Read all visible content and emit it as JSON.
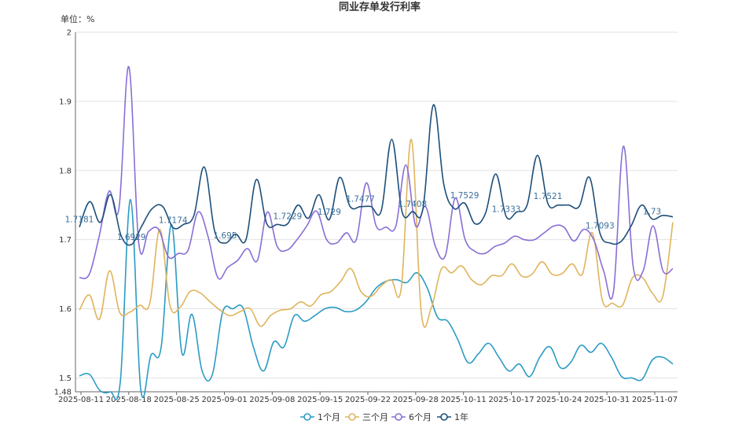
{
  "chart_data": {
    "type": "line",
    "title": "同业存单发行利率",
    "unit_label": "单位：%",
    "ylim": [
      1.48,
      2.0
    ],
    "yticks": [
      1.48,
      1.5,
      1.6,
      1.7,
      1.8,
      1.9,
      2
    ],
    "xticks": [
      "2025-08-11",
      "2025-08-18",
      "2025-08-25",
      "2025-09-01",
      "2025-09-08",
      "2025-09-15",
      "2025-09-22",
      "2025-09-28",
      "2025-10-11",
      "2025-10-17",
      "2025-10-24",
      "2025-10-31",
      "2025-11-07"
    ],
    "grid": true,
    "smooth": true,
    "legend_position": "bottom",
    "series": [
      {
        "name": "1个月",
        "color": "#2b9bc4",
        "values": [
          1.503,
          1.505,
          1.482,
          1.48,
          1.495,
          1.758,
          1.483,
          1.533,
          1.545,
          1.722,
          1.537,
          1.592,
          1.51,
          1.505,
          1.595,
          1.6,
          1.601,
          1.545,
          1.51,
          1.552,
          1.545,
          1.59,
          1.582,
          1.59,
          1.6,
          1.602,
          1.596,
          1.598,
          1.61,
          1.63,
          1.64,
          1.642,
          1.638,
          1.652,
          1.63,
          1.588,
          1.582,
          1.555,
          1.522,
          1.535,
          1.55,
          1.53,
          1.51,
          1.52,
          1.502,
          1.53,
          1.545,
          1.515,
          1.522,
          1.547,
          1.537,
          1.55,
          1.53,
          1.502,
          1.5,
          1.498,
          1.526,
          1.53,
          1.52
        ]
      },
      {
        "name": "三个月",
        "color": "#e0b45c",
        "values": [
          1.598,
          1.62,
          1.585,
          1.655,
          1.595,
          1.595,
          1.605,
          1.608,
          1.715,
          1.605,
          1.602,
          1.625,
          1.623,
          1.61,
          1.598,
          1.59,
          1.596,
          1.6,
          1.575,
          1.59,
          1.598,
          1.6,
          1.61,
          1.604,
          1.62,
          1.625,
          1.64,
          1.658,
          1.625,
          1.618,
          1.633,
          1.642,
          1.63,
          1.845,
          1.593,
          1.602,
          1.658,
          1.652,
          1.662,
          1.642,
          1.635,
          1.648,
          1.648,
          1.665,
          1.647,
          1.65,
          1.668,
          1.65,
          1.651,
          1.665,
          1.65,
          1.71,
          1.612,
          1.608,
          1.605,
          1.645,
          1.645,
          1.622,
          1.618,
          1.725
        ]
      },
      {
        "name": "6个月",
        "color": "#8a6ed6",
        "values": [
          1.645,
          1.65,
          1.705,
          1.77,
          1.745,
          1.95,
          1.695,
          1.712,
          1.715,
          1.675,
          1.68,
          1.685,
          1.74,
          1.705,
          1.645,
          1.66,
          1.67,
          1.687,
          1.67,
          1.74,
          1.69,
          1.685,
          1.7,
          1.72,
          1.741,
          1.7,
          1.695,
          1.71,
          1.7,
          1.782,
          1.72,
          1.718,
          1.72,
          1.808,
          1.72,
          1.748,
          1.69,
          1.677,
          1.76,
          1.7,
          1.683,
          1.68,
          1.69,
          1.695,
          1.705,
          1.7,
          1.7,
          1.71,
          1.72,
          1.718,
          1.698,
          1.715,
          1.7,
          1.655,
          1.625,
          1.835,
          1.66,
          1.655,
          1.72,
          1.655,
          1.658
        ]
      },
      {
        "name": "1年",
        "color": "#1d4f7a",
        "values": [
          1.7181,
          1.755,
          1.725,
          1.765,
          1.706,
          1.6929,
          1.72,
          1.745,
          1.748,
          1.7174,
          1.722,
          1.735,
          1.805,
          1.712,
          1.695,
          1.708,
          1.7,
          1.787,
          1.723,
          1.722,
          1.7229,
          1.75,
          1.731,
          1.765,
          1.729,
          1.79,
          1.748,
          1.7477,
          1.748,
          1.742,
          1.845,
          1.74,
          1.7408,
          1.745,
          1.895,
          1.78,
          1.745,
          1.7529,
          1.723,
          1.738,
          1.795,
          1.7333,
          1.74,
          1.75,
          1.822,
          1.7521,
          1.75,
          1.75,
          1.748,
          1.79,
          1.7093,
          1.695,
          1.697,
          1.72,
          1.75,
          1.73,
          1.735,
          1.733
        ]
      }
    ],
    "data_labels": [
      "1.7181",
      "1.6929",
      "1.7174",
      "1.695",
      "1.7229",
      "1.729",
      "1.7477",
      "1.7408",
      "1.7529",
      "1.7333",
      "1.7521",
      "1.7093",
      "1.73"
    ]
  }
}
